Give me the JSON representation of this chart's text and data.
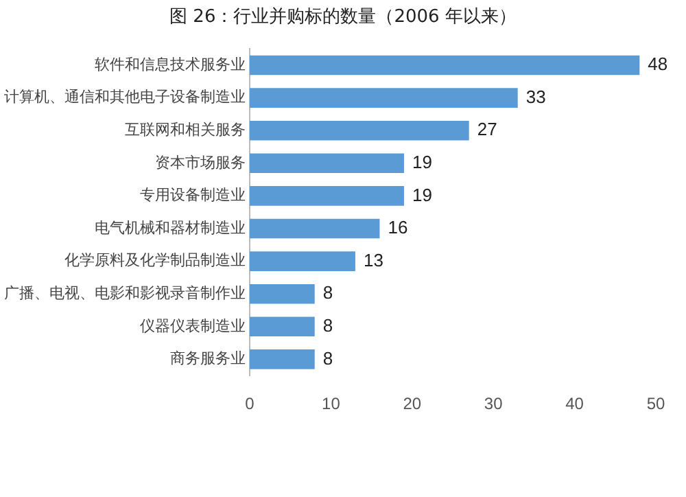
{
  "chart_data": {
    "type": "bar",
    "orientation": "horizontal",
    "title": "图 26：行业并购标的数量（2006 年以来）",
    "categories": [
      "软件和信息技术服务业",
      "计算机、通信和其他电子设备制造业",
      "互联网和相关服务",
      "资本市场服务",
      "专用设备制造业",
      "电气机械和器材制造业",
      "化学原料及化学制品制造业",
      "广播、电视、电影和影视录音制作业",
      "仪器仪表制造业",
      "商务服务业"
    ],
    "values": [
      48,
      33,
      27,
      19,
      19,
      16,
      13,
      8,
      8,
      8
    ],
    "color": "#5b9bd5",
    "xlim": [
      0,
      50
    ],
    "xticks": [
      0,
      10,
      20,
      30,
      40,
      50
    ],
    "grid": false,
    "legend": false,
    "data_labels": true
  }
}
